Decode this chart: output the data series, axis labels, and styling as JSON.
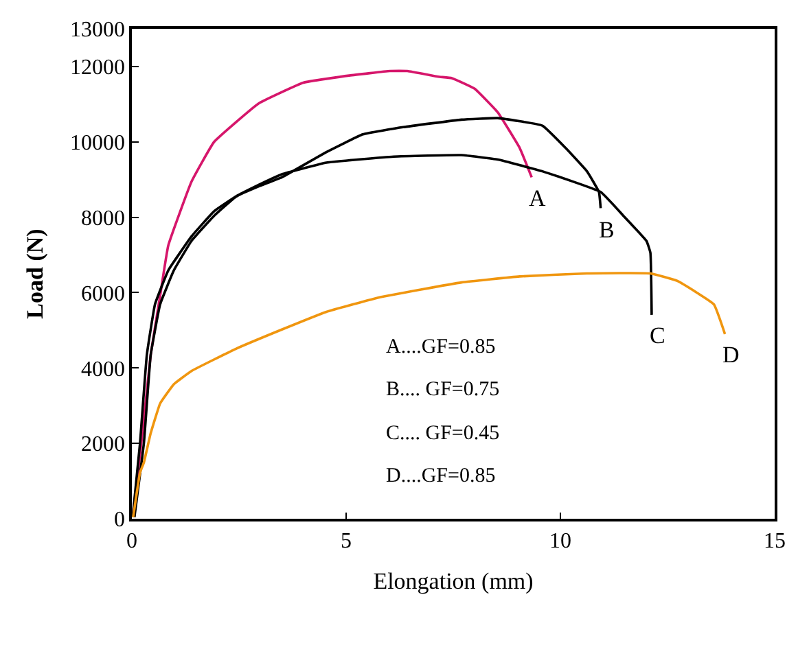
{
  "chart_data": {
    "type": "line",
    "xlabel": "Elongation (mm)",
    "ylabel": "Load (N)",
    "xlim": [
      0,
      15
    ],
    "xticks": [
      0,
      5,
      10,
      15
    ],
    "ylim": [
      0,
      13000
    ],
    "yticks": [
      0,
      2000,
      4000,
      6000,
      8000,
      10000,
      12000,
      13000
    ],
    "grid": false,
    "legend": false,
    "marker": "none",
    "line_style": "solid",
    "series": [
      {
        "name": "A",
        "color": "#d6166b",
        "x": [
          0.02,
          0.22,
          0.44,
          0.66,
          0.85,
          1.39,
          1.92,
          2.96,
          4.0,
          5.07,
          6.02,
          6.43,
          7.15,
          7.47,
          8.0,
          8.54,
          9.05,
          9.33
        ],
        "values": [
          50,
          2000,
          4350,
          5920,
          7250,
          8940,
          10000,
          11020,
          11570,
          11760,
          11880,
          11880,
          11730,
          11690,
          11410,
          10780,
          9840,
          9060
        ]
      },
      {
        "name": "B",
        "color": "#000000",
        "x": [
          0.02,
          0.19,
          0.35,
          0.54,
          0.85,
          1.39,
          1.92,
          2.43,
          2.96,
          3.5,
          4.54,
          5.39,
          6.33,
          7.69,
          8.54,
          9.58,
          10.12,
          10.62,
          10.9,
          10.94
        ],
        "values": [
          50,
          2000,
          4350,
          5690,
          6590,
          7490,
          8160,
          8550,
          8820,
          9060,
          9730,
          10200,
          10390,
          10590,
          10630,
          10430,
          9840,
          9220,
          8670,
          8240
        ]
      },
      {
        "name": "C",
        "color": "#000000",
        "x": [
          0.06,
          0.28,
          0.44,
          0.66,
          0.98,
          1.39,
          1.92,
          2.43,
          2.96,
          3.5,
          4.54,
          6.11,
          7.69,
          8.54,
          9.58,
          10.94,
          11.47,
          12.01,
          12.1,
          12.13
        ],
        "values": [
          40,
          2000,
          4350,
          5690,
          6590,
          7370,
          8040,
          8550,
          8860,
          9140,
          9450,
          9610,
          9650,
          9530,
          9220,
          8670,
          8040,
          7370,
          7060,
          5410
        ]
      },
      {
        "name": "D",
        "color": "#f0960f",
        "x": [
          0.03,
          0.19,
          0.28,
          0.44,
          0.66,
          0.98,
          1.39,
          2.43,
          3.5,
          4.54,
          5.8,
          7.69,
          9.05,
          10.62,
          12.1,
          12.73,
          13.58,
          13.84
        ],
        "values": [
          40,
          1220,
          1490,
          2270,
          3060,
          3570,
          3920,
          4510,
          5020,
          5490,
          5880,
          6270,
          6430,
          6510,
          6510,
          6310,
          5690,
          4900
        ]
      }
    ],
    "annotations": [
      "A....GF=0.85",
      "B.... GF=0.75",
      "C.... GF=0.45",
      "D....GF=0.85"
    ]
  }
}
